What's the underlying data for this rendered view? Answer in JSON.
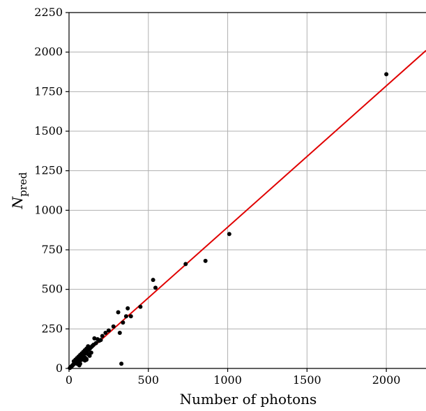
{
  "chart_data": {
    "type": "scatter",
    "title": "",
    "xlabel": "Number of photons",
    "ylabel": {
      "base": "N",
      "subscript": "pred"
    },
    "xlim": [
      0,
      2250
    ],
    "ylim": [
      0,
      2250
    ],
    "x_ticks": [
      0,
      500,
      1000,
      1500,
      2000
    ],
    "y_ticks": [
      0,
      250,
      500,
      750,
      1000,
      1250,
      1500,
      1750,
      2000,
      2250
    ],
    "grid": true,
    "colors": {
      "points": "#000000",
      "fit_line": "#e00000",
      "grid": "#b0b0b0"
    },
    "series": [
      {
        "type": "scatter",
        "points": [
          [
            5,
            3
          ],
          [
            8,
            6
          ],
          [
            10,
            8
          ],
          [
            12,
            10
          ],
          [
            15,
            12
          ],
          [
            18,
            15
          ],
          [
            20,
            18
          ],
          [
            22,
            20
          ],
          [
            25,
            22
          ],
          [
            28,
            25
          ],
          [
            30,
            28
          ],
          [
            32,
            30
          ],
          [
            35,
            32
          ],
          [
            38,
            35
          ],
          [
            40,
            38
          ],
          [
            42,
            40
          ],
          [
            45,
            42
          ],
          [
            48,
            45
          ],
          [
            50,
            48
          ],
          [
            52,
            50
          ],
          [
            55,
            52
          ],
          [
            58,
            55
          ],
          [
            60,
            58
          ],
          [
            62,
            60
          ],
          [
            65,
            62
          ],
          [
            68,
            65
          ],
          [
            70,
            68
          ],
          [
            72,
            70
          ],
          [
            75,
            72
          ],
          [
            78,
            75
          ],
          [
            80,
            78
          ],
          [
            82,
            80
          ],
          [
            85,
            82
          ],
          [
            88,
            85
          ],
          [
            90,
            88
          ],
          [
            95,
            92
          ],
          [
            100,
            95
          ],
          [
            105,
            100
          ],
          [
            110,
            105
          ],
          [
            115,
            110
          ],
          [
            120,
            115
          ],
          [
            125,
            120
          ],
          [
            130,
            125
          ],
          [
            135,
            130
          ],
          [
            140,
            135
          ],
          [
            145,
            140
          ],
          [
            150,
            145
          ],
          [
            155,
            150
          ],
          [
            30,
            45
          ],
          [
            40,
            55
          ],
          [
            50,
            65
          ],
          [
            60,
            75
          ],
          [
            70,
            85
          ],
          [
            80,
            95
          ],
          [
            90,
            105
          ],
          [
            100,
            115
          ],
          [
            110,
            125
          ],
          [
            120,
            140
          ],
          [
            50,
            30
          ],
          [
            60,
            40
          ],
          [
            70,
            50
          ],
          [
            80,
            55
          ],
          [
            90,
            65
          ],
          [
            100,
            70
          ],
          [
            110,
            60
          ],
          [
            120,
            90
          ],
          [
            130,
            80
          ],
          [
            140,
            100
          ],
          [
            60,
            25
          ],
          [
            65,
            20
          ],
          [
            70,
            30
          ],
          [
            100,
            50
          ],
          [
            110,
            55
          ],
          [
            160,
            190
          ],
          [
            170,
            160
          ],
          [
            180,
            185
          ],
          [
            190,
            175
          ],
          [
            200,
            180
          ],
          [
            210,
            205
          ],
          [
            230,
            225
          ],
          [
            250,
            240
          ],
          [
            280,
            265
          ],
          [
            310,
            355
          ],
          [
            320,
            225
          ],
          [
            330,
            30
          ],
          [
            340,
            290
          ],
          [
            360,
            330
          ],
          [
            370,
            380
          ],
          [
            390,
            330
          ],
          [
            450,
            390
          ],
          [
            530,
            560
          ],
          [
            545,
            510
          ],
          [
            735,
            660
          ],
          [
            860,
            680
          ],
          [
            1010,
            850
          ],
          [
            2000,
            1860
          ]
        ]
      },
      {
        "type": "line",
        "points": [
          [
            0,
            0
          ],
          [
            2250,
            2010
          ]
        ]
      }
    ]
  }
}
